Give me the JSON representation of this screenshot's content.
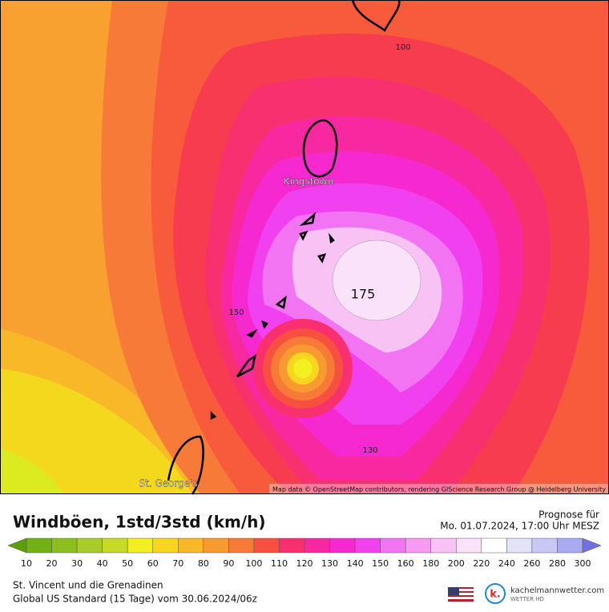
{
  "map": {
    "contour_labels": [
      100,
      150,
      175,
      130
    ],
    "places": [
      "Kingstown",
      "St. George's"
    ],
    "attribution": "Map data © OpenStreetMap contributors, rendering GIScience Research Group @ Heidelberg University"
  },
  "footer": {
    "title": "Windböen, 1std/3std (km/h)",
    "forecast_label": "Prognose für",
    "forecast_time": "Mo. 01.07.2024, 17:00 Uhr MESZ",
    "region": "St. Vincent und die Grenadinen",
    "model": "Global US Standard (15 Tage) vom  30.06.2024/06z",
    "brand": "kachelmannwetter.com",
    "brand_sub": "WETTER HD"
  },
  "colorbar": {
    "ticks": [
      10,
      20,
      30,
      40,
      50,
      60,
      70,
      80,
      90,
      100,
      110,
      120,
      130,
      140,
      150,
      160,
      180,
      200,
      220,
      240,
      260,
      280,
      300
    ],
    "colors": [
      "#5a9e0a",
      "#72b014",
      "#8cbe1e",
      "#a8cc28",
      "#c6da28",
      "#f2f020",
      "#f8d620",
      "#f8b828",
      "#f89a30",
      "#f87a38",
      "#f85040",
      "#f83070",
      "#f828a0",
      "#f628d0",
      "#f040f0",
      "#f274f2",
      "#f69af2",
      "#f8c2f4",
      "#fae2fa",
      "#ffffff",
      "#e2e2f8",
      "#c8c8f6",
      "#aaaaf2",
      "#8a8aea",
      "#7070e0"
    ]
  }
}
